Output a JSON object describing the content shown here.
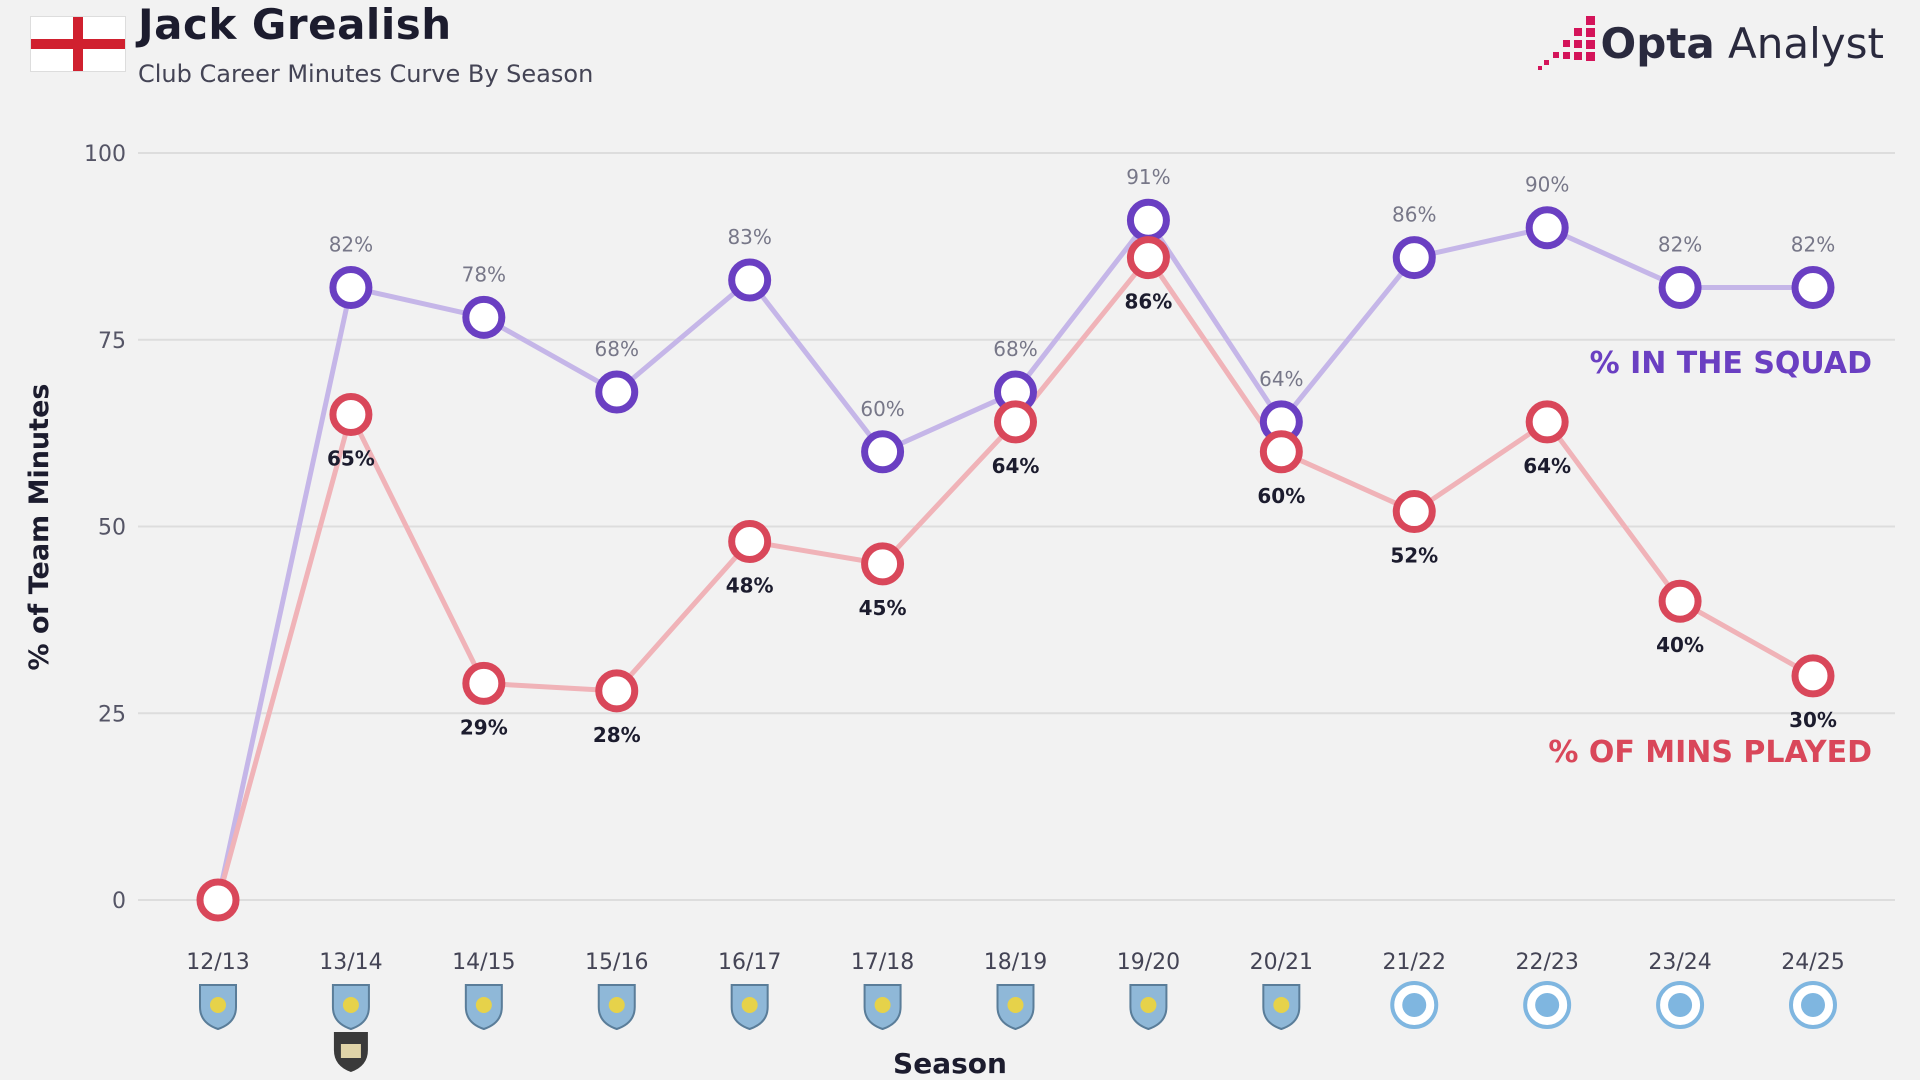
{
  "header": {
    "player_name": "Jack Grealish",
    "subtitle": "Club Career Minutes Curve By Season",
    "brand_bold": "Opta",
    "brand_light": "Analyst"
  },
  "colors": {
    "squad": "#6a3fc2",
    "squad_line": "#c5b6e8",
    "mins": "#d9475a",
    "mins_line": "#f0b3b8",
    "grid": "#dddddd",
    "villa_badge": "#8fb8d8",
    "city_badge": "#7fb6e0",
    "notts_badge": "#3a3a3a"
  },
  "chart_data": {
    "type": "line",
    "title": "Jack Grealish",
    "subtitle": "Club Career Minutes Curve By Season",
    "xlabel": "Season",
    "ylabel": "% of Team Minutes",
    "ylim": [
      0,
      100
    ],
    "yticks": [
      0,
      25,
      50,
      75,
      100
    ],
    "grid": true,
    "categories": [
      "12/13",
      "13/14",
      "14/15",
      "15/16",
      "16/17",
      "17/18",
      "18/19",
      "19/20",
      "20/21",
      "21/22",
      "22/23",
      "23/24",
      "24/25"
    ],
    "series": [
      {
        "name": "% IN THE SQUAD",
        "values": [
          0,
          82,
          78,
          68,
          83,
          60,
          68,
          91,
          64,
          86,
          90,
          82,
          82
        ],
        "labels": [
          "",
          "82%",
          "78%",
          "68%",
          "83%",
          "60%",
          "68%",
          "91%",
          "64%",
          "86%",
          "90%",
          "82%",
          "82%"
        ]
      },
      {
        "name": "% OF MINS PLAYED",
        "values": [
          0,
          65,
          29,
          28,
          48,
          45,
          64,
          86,
          60,
          52,
          64,
          40,
          30
        ],
        "labels": [
          "",
          "65%",
          "29%",
          "28%",
          "48%",
          "45%",
          "64%",
          "86%",
          "60%",
          "52%",
          "64%",
          "40%",
          "30%"
        ]
      }
    ],
    "club_badges": [
      [
        "aston-villa"
      ],
      [
        "aston-villa",
        "notts-county"
      ],
      [
        "aston-villa"
      ],
      [
        "aston-villa"
      ],
      [
        "aston-villa"
      ],
      [
        "aston-villa"
      ],
      [
        "aston-villa"
      ],
      [
        "aston-villa"
      ],
      [
        "aston-villa"
      ],
      [
        "manchester-city"
      ],
      [
        "manchester-city"
      ],
      [
        "manchester-city"
      ],
      [
        "manchester-city"
      ]
    ]
  }
}
